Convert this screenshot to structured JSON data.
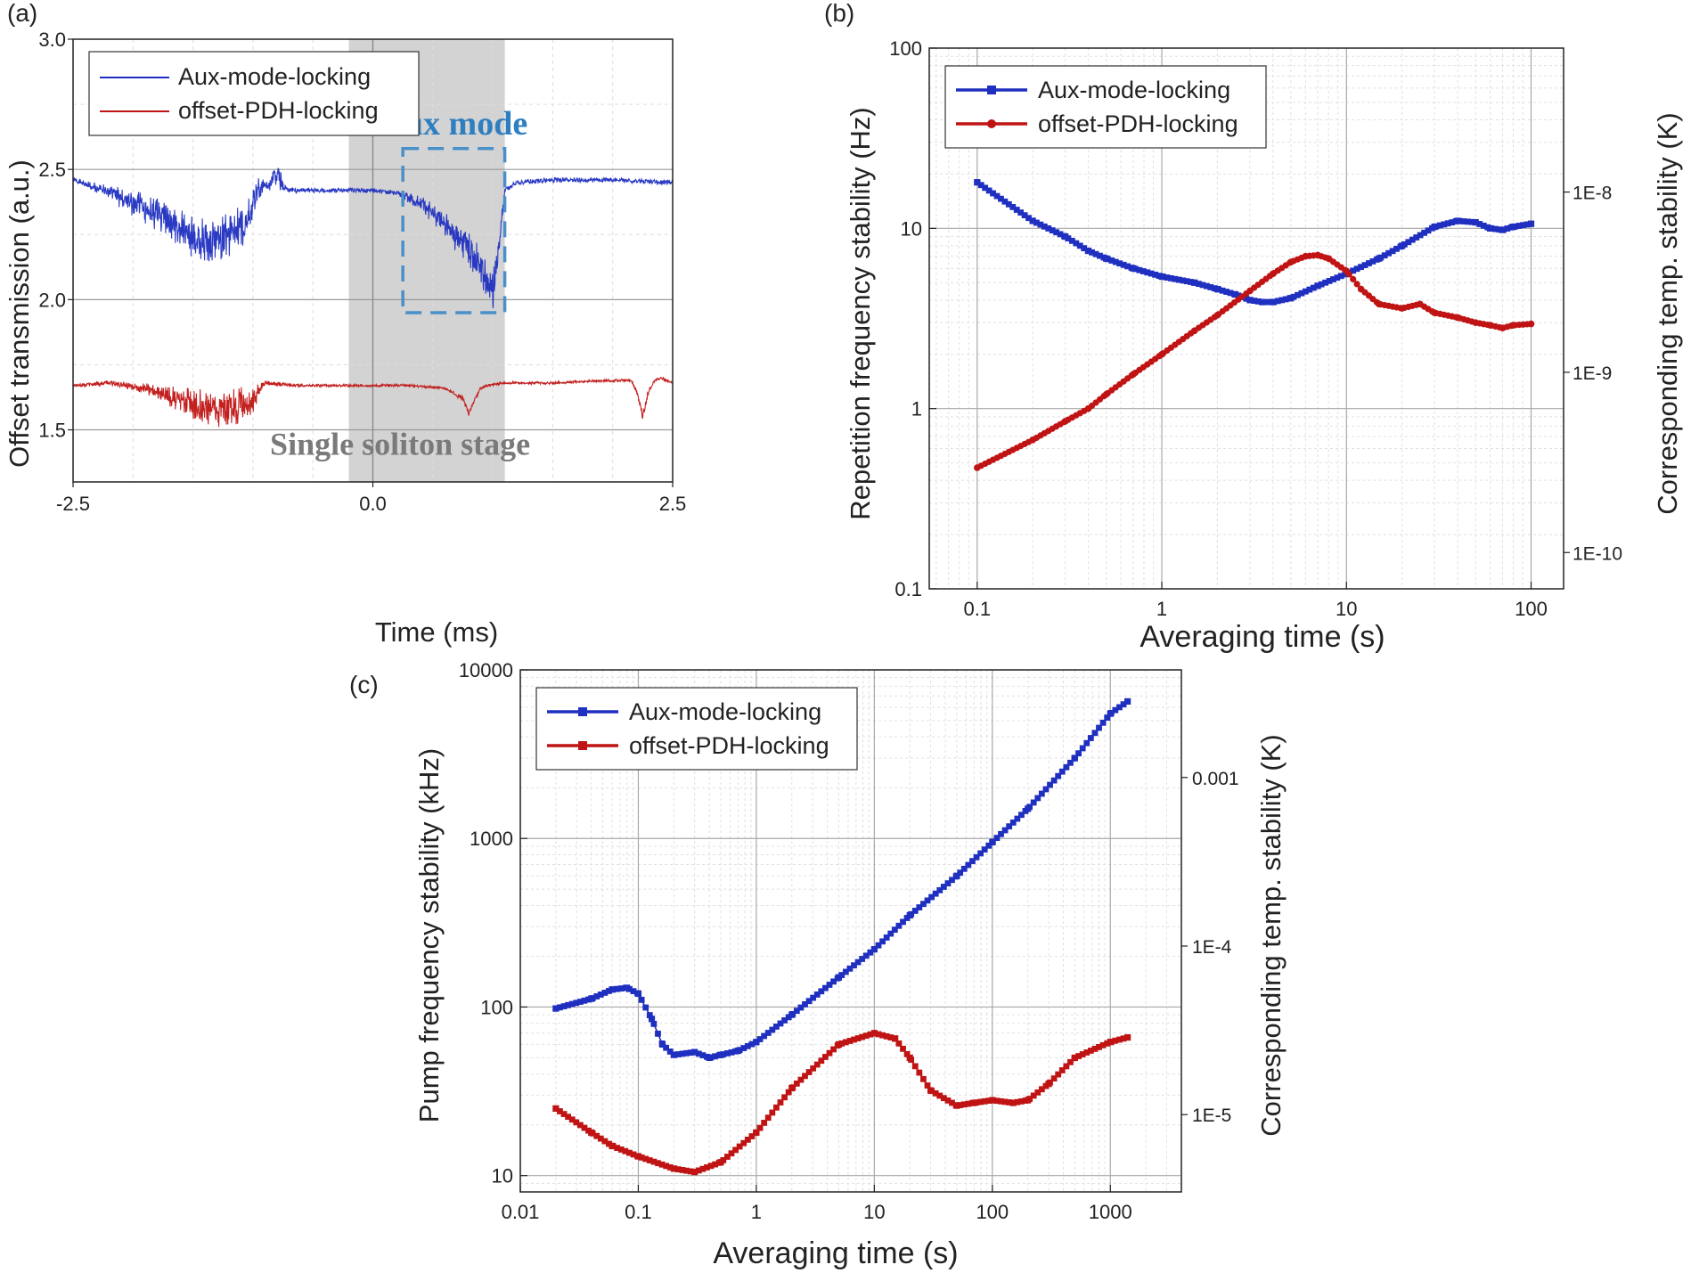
{
  "panel_labels": [
    "(a)",
    "(b)",
    "(c)"
  ],
  "colors": {
    "aux": "#1f2fc0",
    "pdh": "#c01414",
    "shade": "#d3d3d3",
    "box": "#4a90c8",
    "grid": "#c8c8c8"
  },
  "chart_data": [
    {
      "panel": "(a)",
      "type": "line",
      "xlabel": "Time (ms)",
      "ylabel": "Offset transmission (a.u.)",
      "xlim": [
        -2.5,
        2.5
      ],
      "ylim": [
        1.3,
        3.0
      ],
      "x_ticks": [
        "-2.5",
        "0.0",
        "2.5"
      ],
      "y_ticks": [
        "1.5",
        "2.0",
        "2.5",
        "3.0"
      ],
      "grid": true,
      "legend": "top-left",
      "shaded_region": {
        "x": [
          -0.2,
          1.1
        ],
        "label": "Single soliton stage"
      },
      "annotation_box": {
        "x": [
          0.25,
          1.1
        ],
        "y": [
          1.95,
          2.58
        ],
        "label": "Aux mode"
      },
      "series": [
        {
          "name": "Aux-mode-locking",
          "color": "#1f2fc0",
          "x": [
            -2.5,
            -2.3,
            -2.1,
            -1.9,
            -1.7,
            -1.5,
            -1.35,
            -1.2,
            -1.05,
            -1.0,
            -0.95,
            -0.9,
            -0.8,
            -0.75,
            -0.7,
            -0.6,
            -0.4,
            -0.2,
            0.0,
            0.2,
            0.3,
            0.4,
            0.5,
            0.6,
            0.7,
            0.8,
            0.9,
            0.95,
            1.0,
            1.05,
            1.1,
            1.2,
            1.5,
            2.0,
            2.5
          ],
          "y": [
            2.46,
            2.43,
            2.39,
            2.35,
            2.3,
            2.24,
            2.22,
            2.25,
            2.3,
            2.38,
            2.44,
            2.43,
            2.48,
            2.44,
            2.42,
            2.42,
            2.42,
            2.42,
            2.42,
            2.41,
            2.39,
            2.37,
            2.33,
            2.29,
            2.24,
            2.19,
            2.13,
            2.08,
            2.03,
            2.2,
            2.42,
            2.45,
            2.46,
            2.46,
            2.45
          ],
          "noise_amp": [
            0.01,
            0.02,
            0.04,
            0.06,
            0.07,
            0.08,
            0.09,
            0.09,
            0.08,
            0.06,
            0.05,
            0.02,
            0.05,
            0.03,
            0.01,
            0.01,
            0.01,
            0.01,
            0.01,
            0.01,
            0.02,
            0.03,
            0.04,
            0.05,
            0.06,
            0.07,
            0.08,
            0.08,
            0.09,
            0.05,
            0.01,
            0.01,
            0.01,
            0.01,
            0.01
          ]
        },
        {
          "name": "offset-PDH-locking",
          "color": "#c01414",
          "x": [
            -2.5,
            -2.2,
            -1.9,
            -1.7,
            -1.5,
            -1.3,
            -1.15,
            -1.0,
            -0.95,
            -0.9,
            -0.6,
            -0.2,
            0.3,
            0.6,
            0.75,
            0.8,
            0.85,
            0.9,
            0.95,
            1.1,
            1.5,
            2.0,
            2.15,
            2.2,
            2.25,
            2.3,
            2.35,
            2.4,
            2.5
          ],
          "y": [
            1.67,
            1.68,
            1.66,
            1.63,
            1.6,
            1.58,
            1.58,
            1.62,
            1.66,
            1.68,
            1.67,
            1.67,
            1.67,
            1.66,
            1.62,
            1.56,
            1.62,
            1.66,
            1.67,
            1.68,
            1.68,
            1.69,
            1.69,
            1.65,
            1.55,
            1.65,
            1.69,
            1.7,
            1.68
          ],
          "noise_amp": [
            0.005,
            0.01,
            0.02,
            0.04,
            0.06,
            0.07,
            0.08,
            0.06,
            0.03,
            0.01,
            0.005,
            0.005,
            0.005,
            0.005,
            0.01,
            0.01,
            0.01,
            0.005,
            0.005,
            0.005,
            0.005,
            0.005,
            0.005,
            0.01,
            0.02,
            0.01,
            0.005,
            0.005,
            0.005
          ]
        }
      ]
    },
    {
      "panel": "(b)",
      "type": "line",
      "xlabel": "Averaging time (s)",
      "ylabel": "Repetition frequency stability (Hz)",
      "ylabel_right": "Corresponding temp. stability (K)",
      "x_scale": "log",
      "y_scale": "log",
      "xlim": [
        0.055,
        150
      ],
      "ylim": [
        0.1,
        100
      ],
      "x_ticks": [
        "0.1",
        "1",
        "10",
        "100"
      ],
      "y_ticks": [
        "0.1",
        "1",
        "10",
        "100"
      ],
      "y_right_ticks": [
        {
          "label": "1E-10",
          "value": 0.159
        },
        {
          "label": "1E-9",
          "value": 1.59
        },
        {
          "label": "1E-8",
          "value": 15.9
        }
      ],
      "grid": true,
      "legend": "top-left",
      "series": [
        {
          "name": "Aux-mode-locking",
          "color": "#1f2fc0",
          "marker": "square",
          "x": [
            0.1,
            0.2,
            0.3,
            0.4,
            0.5,
            0.7,
            1.0,
            1.5,
            2.0,
            2.5,
            3.0,
            3.5,
            4.0,
            5.0,
            7.0,
            10,
            15,
            20,
            30,
            40,
            50,
            60,
            70,
            80,
            100
          ],
          "y": [
            18,
            11,
            9,
            7.5,
            6.8,
            6.0,
            5.4,
            5.0,
            4.6,
            4.3,
            4.0,
            3.9,
            3.9,
            4.1,
            4.8,
            5.6,
            6.8,
            8.0,
            10.2,
            11.0,
            10.8,
            10.0,
            9.8,
            10.2,
            10.6
          ]
        },
        {
          "name": "offset-PDH-locking",
          "color": "#c01414",
          "marker": "circle",
          "x": [
            0.1,
            0.2,
            0.3,
            0.4,
            0.5,
            0.7,
            1.0,
            1.5,
            2.0,
            3.0,
            4.0,
            5.0,
            6.0,
            7.0,
            8.0,
            10,
            12,
            15,
            20,
            25,
            30,
            40,
            50,
            60,
            70,
            80,
            100
          ],
          "y": [
            0.47,
            0.67,
            0.85,
            1.0,
            1.2,
            1.55,
            2.0,
            2.7,
            3.3,
            4.5,
            5.6,
            6.5,
            7.0,
            7.1,
            6.8,
            5.8,
            4.6,
            3.8,
            3.6,
            3.8,
            3.4,
            3.2,
            3.0,
            2.9,
            2.8,
            2.9,
            2.95
          ]
        }
      ]
    },
    {
      "panel": "(c)",
      "type": "line",
      "xlabel": "Averaging time (s)",
      "ylabel": "Pump frequency stability (kHz)",
      "ylabel_right": "Corresponding temp. stability (K)",
      "x_scale": "log",
      "y_scale": "log",
      "xlim": [
        0.01,
        4000
      ],
      "ylim": [
        8,
        10000
      ],
      "x_ticks": [
        "0.01",
        "0.1",
        "1",
        "10",
        "100",
        "1000"
      ],
      "y_ticks": [
        "10",
        "100",
        "1000",
        "10000"
      ],
      "y_right_ticks": [
        {
          "label": "1E-5",
          "value": 23
        },
        {
          "label": "1E-4",
          "value": 230
        },
        {
          "label": "0.001",
          "value": 2300
        }
      ],
      "grid": true,
      "legend": "top-left",
      "series": [
        {
          "name": "Aux-mode-locking",
          "color": "#1f2fc0",
          "marker": "square",
          "x": [
            0.02,
            0.04,
            0.06,
            0.08,
            0.1,
            0.13,
            0.16,
            0.2,
            0.3,
            0.4,
            0.5,
            0.7,
            1.0,
            2.0,
            5.0,
            10,
            20,
            50,
            100,
            200,
            500,
            1000,
            1400
          ],
          "y": [
            98,
            112,
            127,
            130,
            120,
            85,
            60,
            52,
            54,
            50,
            52,
            55,
            62,
            90,
            150,
            220,
            350,
            600,
            950,
            1500,
            3000,
            5500,
            6500
          ]
        },
        {
          "name": "offset-PDH-locking",
          "color": "#c01414",
          "marker": "square",
          "x": [
            0.02,
            0.04,
            0.06,
            0.1,
            0.2,
            0.3,
            0.5,
            1.0,
            2.0,
            5.0,
            10,
            15,
            20,
            30,
            50,
            70,
            100,
            150,
            200,
            300,
            500,
            1000,
            1400
          ],
          "y": [
            25,
            18,
            15,
            13,
            11,
            10.5,
            12,
            18,
            33,
            60,
            70,
            65,
            50,
            32,
            26,
            27,
            28,
            27,
            28,
            35,
            50,
            62,
            66
          ]
        }
      ]
    }
  ]
}
